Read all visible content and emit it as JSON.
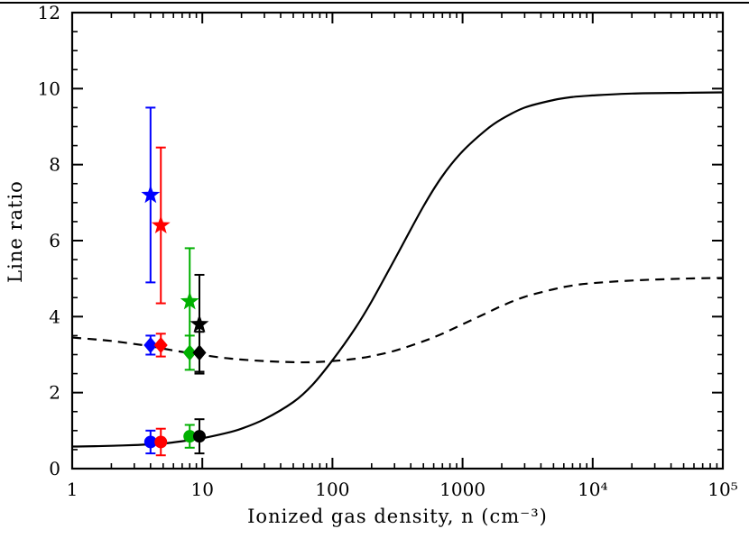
{
  "figure": {
    "background": "#ffffff",
    "top_rule_color": "#000000",
    "axis_color": "#000000"
  },
  "chart_data": {
    "type": "line",
    "title": "",
    "xlabel": "Ionized gas density, n (cm⁻³)",
    "ylabel": "Line ratio",
    "x_scale": "log",
    "y_scale": "linear",
    "xlim": [
      1,
      100000
    ],
    "ylim": [
      0,
      12
    ],
    "grid": false,
    "legend": "none",
    "x_ticks": [
      {
        "value": 1,
        "label": "1"
      },
      {
        "value": 10,
        "label": "10"
      },
      {
        "value": 100,
        "label": "100"
      },
      {
        "value": 1000,
        "label": "1000"
      },
      {
        "value": 10000,
        "label": "10⁴"
      },
      {
        "value": 100000,
        "label": "10⁵"
      }
    ],
    "y_ticks": [
      {
        "value": 0,
        "label": "0"
      },
      {
        "value": 2,
        "label": "2"
      },
      {
        "value": 4,
        "label": "4"
      },
      {
        "value": 6,
        "label": "6"
      },
      {
        "value": 8,
        "label": "8"
      },
      {
        "value": 10,
        "label": "10"
      },
      {
        "value": 12,
        "label": "12"
      }
    ],
    "y_minor_step": 0.5,
    "curves": [
      {
        "name": "solid-model-curve",
        "line": "solid",
        "color": "#000000",
        "x": [
          1,
          1.5,
          2,
          3,
          4,
          5,
          7,
          10,
          15,
          20,
          30,
          50,
          70,
          100,
          150,
          200,
          300,
          500,
          700,
          1000,
          1500,
          2000,
          3000,
          5000,
          7000,
          10000,
          20000,
          50000,
          100000
        ],
        "y": [
          0.58,
          0.59,
          0.6,
          0.62,
          0.64,
          0.66,
          0.72,
          0.8,
          0.93,
          1.05,
          1.3,
          1.75,
          2.2,
          2.85,
          3.7,
          4.4,
          5.5,
          6.9,
          7.7,
          8.35,
          8.9,
          9.2,
          9.5,
          9.7,
          9.78,
          9.82,
          9.87,
          9.89,
          9.9
        ]
      },
      {
        "name": "dashed-model-curve",
        "line": "dashed",
        "color": "#000000",
        "x": [
          1,
          1.5,
          2,
          3,
          4,
          5,
          7,
          10,
          15,
          20,
          30,
          50,
          70,
          100,
          150,
          200,
          300,
          500,
          700,
          1000,
          1500,
          2000,
          3000,
          5000,
          7000,
          10000,
          20000,
          50000,
          100000
        ],
        "y": [
          3.45,
          3.4,
          3.36,
          3.28,
          3.22,
          3.16,
          3.07,
          2.99,
          2.91,
          2.87,
          2.83,
          2.8,
          2.8,
          2.83,
          2.89,
          2.96,
          3.1,
          3.35,
          3.55,
          3.8,
          4.08,
          4.28,
          4.52,
          4.72,
          4.82,
          4.88,
          4.95,
          5.0,
          5.02
        ]
      }
    ],
    "marker_groups": [
      {
        "name": "star-points",
        "marker": "star",
        "points": [
          {
            "x": 4.0,
            "y": 7.2,
            "ylo": 4.9,
            "yhi": 9.5,
            "color": "#0000ff"
          },
          {
            "x": 4.8,
            "y": 6.4,
            "ylo": 4.35,
            "yhi": 8.45,
            "color": "#ff0000"
          },
          {
            "x": 8.0,
            "y": 4.4,
            "ylo": 3.05,
            "yhi": 5.8,
            "color": "#00b000"
          },
          {
            "x": 9.5,
            "y": 3.8,
            "ylo": 2.55,
            "yhi": 5.1,
            "color": "#000000"
          }
        ]
      },
      {
        "name": "diamond-points",
        "marker": "diamond",
        "points": [
          {
            "x": 4.0,
            "y": 3.25,
            "ylo": 3.0,
            "yhi": 3.5,
            "color": "#0000ff"
          },
          {
            "x": 4.8,
            "y": 3.25,
            "ylo": 2.95,
            "yhi": 3.55,
            "color": "#ff0000"
          },
          {
            "x": 8.0,
            "y": 3.05,
            "ylo": 2.6,
            "yhi": 3.5,
            "color": "#00b000"
          },
          {
            "x": 9.5,
            "y": 3.05,
            "ylo": 2.5,
            "yhi": 3.6,
            "color": "#000000"
          }
        ]
      },
      {
        "name": "circle-points",
        "marker": "circle",
        "points": [
          {
            "x": 4.0,
            "y": 0.7,
            "ylo": 0.4,
            "yhi": 1.0,
            "color": "#0000ff"
          },
          {
            "x": 4.8,
            "y": 0.7,
            "ylo": 0.35,
            "yhi": 1.05,
            "color": "#ff0000"
          },
          {
            "x": 8.0,
            "y": 0.85,
            "ylo": 0.55,
            "yhi": 1.15,
            "color": "#00b000"
          },
          {
            "x": 9.5,
            "y": 0.85,
            "ylo": 0.4,
            "yhi": 1.3,
            "color": "#000000"
          }
        ]
      }
    ]
  }
}
